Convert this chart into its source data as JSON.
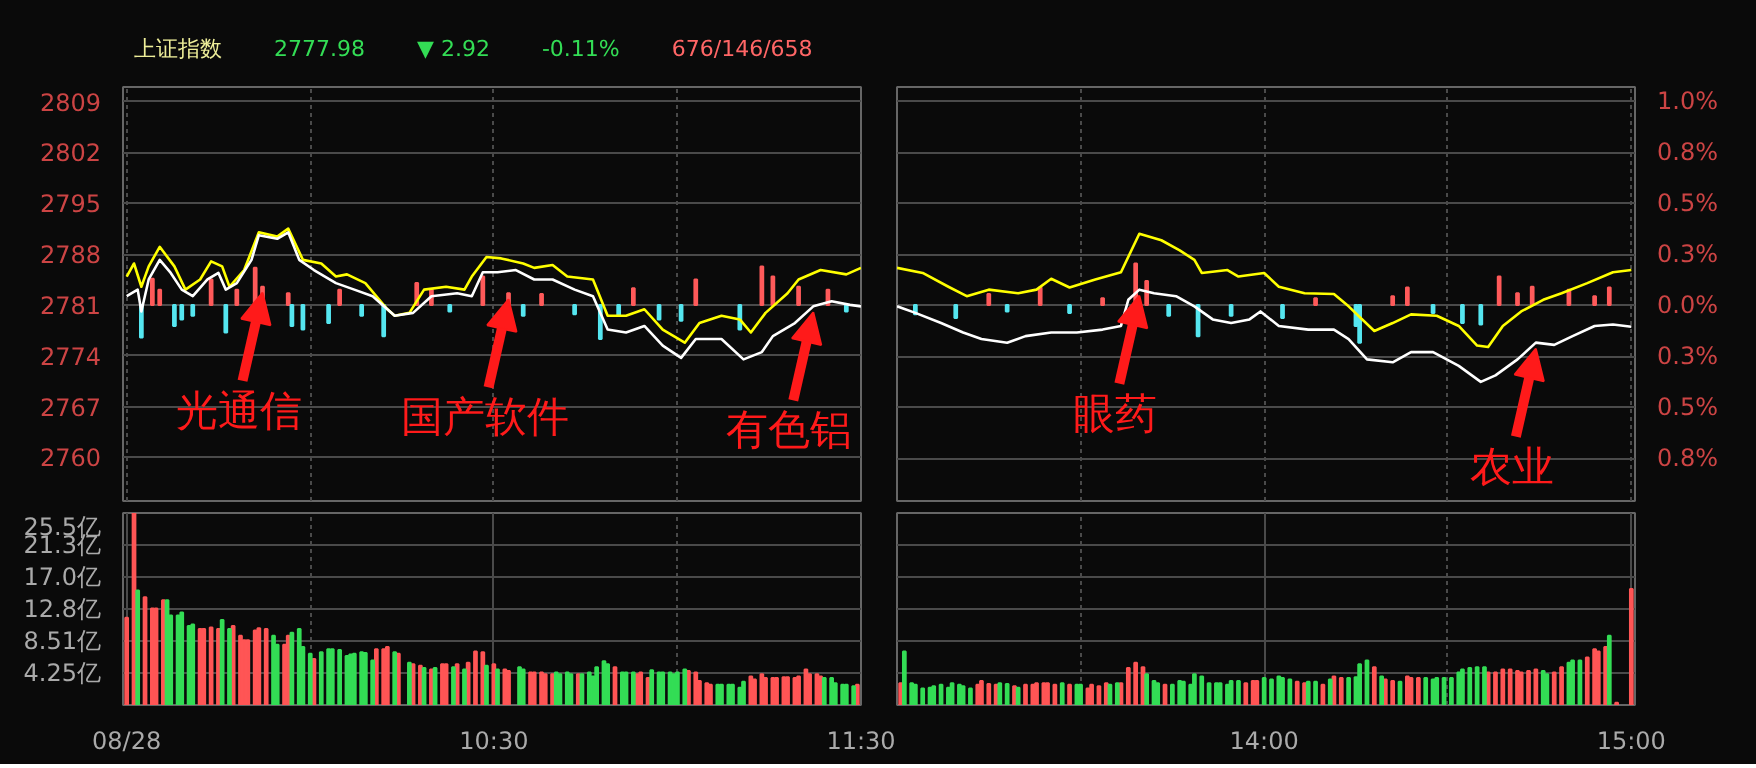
{
  "chart_data": [
    {
      "type": "line",
      "title": "上证指数",
      "annotations": [
        "2777.98",
        "▼ 2.92",
        "-0.11%",
        "676/146/658",
        {
          "text": "光通信",
          "x": 9.87,
          "y": 2783.5
        },
        {
          "text": "国产软件",
          "x": 10.54,
          "y": 2782.6
        },
        {
          "text": "有色铝",
          "x": 11.37,
          "y": 2780.8
        }
      ],
      "xlim": [
        9.49,
        11.5
      ],
      "xticks": [
        {
          "value": 9.5,
          "label": null
        },
        {
          "value": 10,
          "label": null
        },
        {
          "value": 10.5,
          "label": null
        },
        {
          "value": 11,
          "label": null
        },
        {
          "value": 11.5,
          "label": null
        }
      ],
      "ylim": [
        2754,
        2811
      ],
      "yticks": [
        2760,
        2767,
        2774,
        2781,
        2788,
        2795,
        2802,
        2809
      ],
      "grid": true,
      "tick_labels": "y",
      "series": [
        {
          "type": "bar",
          "color": "#ff5a5a",
          "x": [
            9.57,
            9.59,
            9.73,
            9.8,
            9.85,
            9.87,
            9.94,
            10.08,
            10.29,
            10.33,
            10.47,
            10.54,
            10.63,
            10.88,
            11.05,
            11.23,
            11.26,
            11.33,
            11.41
          ],
          "base": [
            2781,
            2781,
            2781,
            2781,
            2781,
            2781,
            2781,
            2781,
            2781,
            2781,
            2781,
            2781,
            2781,
            2781,
            2781,
            2781,
            2781,
            2781,
            2781
          ],
          "values": [
            3.6,
            2.1,
            3.5,
            2.1,
            5.1,
            2.5,
            1.6,
            2.1,
            3.0,
            2.1,
            3.9,
            1.6,
            1.5,
            2.3,
            3.5,
            5.3,
            3.9,
            2.5,
            2.1
          ]
        },
        {
          "type": "bar",
          "color": "#55e6f0",
          "x": [
            9.54,
            9.63,
            9.65,
            9.68,
            9.77,
            9.95,
            9.98,
            10.05,
            10.14,
            10.2,
            10.38,
            10.58,
            10.72,
            10.79,
            10.84,
            10.95,
            11.01,
            11.17,
            11.46
          ],
          "base": [
            2781,
            2781,
            2781,
            2781,
            2781,
            2781,
            2781,
            2781,
            2781,
            2781,
            2781,
            2781,
            2781,
            2781,
            2781,
            2781,
            2781,
            2781,
            2781
          ],
          "values": [
            -4.5,
            -2.9,
            -2.0,
            -1.5,
            -3.8,
            -2.9,
            -3.4,
            -2.5,
            -1.5,
            -4.3,
            -0.9,
            -1.5,
            -1.3,
            -4.7,
            -1.5,
            -2.0,
            -2.2,
            -3.4,
            -0.9
          ]
        },
        {
          "color": "#ffff00",
          "x": [
            9.5,
            9.52,
            9.54,
            9.56,
            9.59,
            9.63,
            9.66,
            9.7,
            9.73,
            9.76,
            9.78,
            9.82,
            9.86,
            9.91,
            9.94,
            9.98,
            10.03,
            10.07,
            10.1,
            10.15,
            10.21,
            10.23,
            10.27,
            10.31,
            10.37,
            10.42,
            10.44,
            10.48,
            10.52,
            10.58,
            10.61,
            10.66,
            10.7,
            10.77,
            10.81,
            10.86,
            10.91,
            10.96,
            11.02,
            11.06,
            11.12,
            11.17,
            11.2,
            11.24,
            11.3,
            11.33,
            11.39,
            11.46,
            11.5
          ],
          "values": [
            2784.9,
            2786.7,
            2783.5,
            2786.3,
            2789.0,
            2786.3,
            2783.1,
            2784.5,
            2787.0,
            2786.3,
            2783.5,
            2785.8,
            2791.0,
            2790.4,
            2791.5,
            2787.2,
            2786.7,
            2784.9,
            2785.2,
            2784.0,
            2780.4,
            2779.5,
            2779.9,
            2783.1,
            2783.5,
            2783.1,
            2784.9,
            2787.6,
            2787.4,
            2786.7,
            2786.1,
            2786.5,
            2784.9,
            2784.5,
            2779.5,
            2779.5,
            2780.4,
            2777.6,
            2775.8,
            2778.5,
            2779.5,
            2779.0,
            2777.2,
            2779.9,
            2782.6,
            2784.5,
            2785.8,
            2785.2,
            2786.1
          ]
        },
        {
          "color": "#ffffff",
          "x": [
            9.5,
            9.53,
            9.54,
            9.56,
            9.59,
            9.62,
            9.65,
            9.68,
            9.72,
            9.75,
            9.77,
            9.8,
            9.84,
            9.86,
            9.91,
            9.94,
            9.97,
            10.01,
            10.07,
            10.12,
            10.17,
            10.23,
            10.28,
            10.33,
            10.4,
            10.44,
            10.47,
            10.51,
            10.56,
            10.61,
            10.66,
            10.72,
            10.77,
            10.81,
            10.86,
            10.91,
            10.96,
            11.01,
            11.05,
            11.12,
            11.18,
            11.23,
            11.26,
            11.32,
            11.37,
            11.42,
            11.47,
            11.5
          ],
          "values": [
            2782.2,
            2783.1,
            2780.1,
            2784.5,
            2787.2,
            2785.4,
            2783.1,
            2782.2,
            2784.5,
            2785.4,
            2783.1,
            2784.0,
            2787.2,
            2790.6,
            2790.1,
            2791.0,
            2787.2,
            2785.8,
            2784.0,
            2783.1,
            2782.2,
            2779.5,
            2779.9,
            2782.2,
            2782.6,
            2782.2,
            2785.5,
            2785.5,
            2785.8,
            2784.5,
            2784.5,
            2783.1,
            2782.2,
            2777.6,
            2777.2,
            2778.1,
            2775.4,
            2773.7,
            2776.3,
            2776.3,
            2773.5,
            2774.5,
            2776.7,
            2778.5,
            2780.8,
            2781.5,
            2781.0,
            2780.8
          ]
        }
      ]
    },
    {
      "type": "line",
      "annotations": [
        {
          "text": "眼药",
          "x": 13.66,
          "y": 2783.1
        },
        {
          "text": "农业",
          "x": 14.74,
          "y": 2775.8
        }
      ],
      "xlim": [
        13,
        15.01
      ],
      "xticks": [
        {
          "value": 13.5,
          "label": null
        },
        {
          "value": 14,
          "label": null
        },
        {
          "value": 14.5,
          "label": null
        },
        {
          "value": 15,
          "label": null
        }
      ],
      "ylim": [
        2754,
        2811
      ],
      "y2lim": [
        -0.96,
        1.07
      ],
      "y2ticks": [
        {
          "value": -0.75,
          "label": "0.8%"
        },
        {
          "value": -0.5,
          "label": "0.5%"
        },
        {
          "value": -0.25,
          "label": "0.3%"
        },
        {
          "value": 0,
          "label": "0.0%"
        },
        {
          "value": 0.25,
          "label": "0.3%"
        },
        {
          "value": 0.5,
          "label": "0.5%"
        },
        {
          "value": 0.75,
          "label": "0.8%"
        },
        {
          "value": 1.0,
          "label": "1.0%"
        }
      ],
      "grid": true,
      "tick_labels": "y",
      "series": [
        {
          "type": "bar",
          "color": "#ff5a5a",
          "x": [
            13.25,
            13.39,
            13.56,
            13.65,
            13.68,
            14.14,
            14.35,
            14.39,
            14.64,
            14.69,
            14.73,
            14.83,
            14.9,
            14.94
          ],
          "base": [
            2781,
            2781,
            2781,
            2781,
            2781,
            2781,
            2781,
            2781,
            2781,
            2781,
            2781,
            2781,
            2781,
            2781
          ],
          "values": [
            1.5,
            2.4,
            0.9,
            5.7,
            3.3,
            0.9,
            1.2,
            2.4,
            3.9,
            1.6,
            2.5,
            2.1,
            1.2,
            2.4
          ]
        },
        {
          "type": "bar",
          "color": "#55e6f0",
          "x": [
            13.05,
            13.16,
            13.3,
            13.47,
            13.74,
            13.82,
            13.91,
            14.05,
            14.25,
            14.26,
            14.46,
            14.54,
            14.59
          ],
          "base": [
            2781,
            2781,
            2781,
            2781,
            2781,
            2781,
            2781,
            2781,
            2781,
            2781,
            2781,
            2781,
            2781
          ],
          "values": [
            -1.3,
            -1.8,
            -0.9,
            -1.1,
            -1.5,
            -4.3,
            -1.5,
            -1.8,
            -2.9,
            -5.2,
            -1.1,
            -2.5,
            -2.7
          ]
        },
        {
          "color": "#ffff00",
          "x": [
            13.0,
            13.07,
            13.14,
            13.19,
            13.25,
            13.33,
            13.38,
            13.42,
            13.47,
            13.54,
            13.61,
            13.66,
            13.72,
            13.77,
            13.81,
            13.83,
            13.9,
            13.93,
            14.0,
            14.04,
            14.11,
            14.19,
            14.23,
            14.3,
            14.35,
            14.4,
            14.47,
            14.53,
            14.58,
            14.61,
            14.65,
            14.7,
            14.76,
            14.81,
            14.88,
            14.95,
            15.0
          ],
          "values": [
            2786.1,
            2785.4,
            2783.5,
            2782.2,
            2783.1,
            2782.6,
            2783.1,
            2784.6,
            2783.4,
            2784.5,
            2785.5,
            2790.8,
            2789.9,
            2788.5,
            2787.2,
            2785.4,
            2785.8,
            2784.9,
            2785.4,
            2783.5,
            2782.6,
            2782.5,
            2780.8,
            2777.4,
            2778.5,
            2779.7,
            2779.5,
            2778.1,
            2775.4,
            2775.2,
            2778.1,
            2780.1,
            2781.7,
            2782.6,
            2784.0,
            2785.5,
            2785.8
          ]
        },
        {
          "color": "#ffffff",
          "x": [
            13.0,
            13.05,
            13.12,
            13.18,
            13.23,
            13.3,
            13.35,
            13.42,
            13.49,
            13.56,
            13.61,
            13.63,
            13.66,
            13.7,
            13.76,
            13.81,
            13.86,
            13.91,
            13.96,
            13.99,
            14.04,
            14.12,
            14.19,
            14.23,
            14.28,
            14.35,
            14.4,
            14.46,
            14.53,
            14.59,
            14.63,
            14.69,
            14.74,
            14.79,
            14.84,
            14.9,
            14.95,
            15.0
          ],
          "values": [
            2780.8,
            2779.9,
            2778.5,
            2777.2,
            2776.3,
            2775.8,
            2776.7,
            2777.2,
            2777.2,
            2777.6,
            2778.1,
            2781.7,
            2783.1,
            2782.6,
            2782.2,
            2780.8,
            2779.0,
            2778.5,
            2779.0,
            2780.1,
            2778.1,
            2777.6,
            2777.6,
            2776.3,
            2773.5,
            2773.1,
            2774.5,
            2774.5,
            2772.6,
            2770.4,
            2771.3,
            2773.5,
            2775.8,
            2775.5,
            2776.7,
            2778.1,
            2778.3,
            2778.0
          ]
        }
      ]
    },
    {
      "type": "bar",
      "xlim": [
        9.49,
        11.5
      ],
      "xticks": [
        {
          "value": 9.5,
          "label": "08/28"
        },
        {
          "value": 10,
          "label": null
        },
        {
          "value": 10.5,
          "label": "10:30"
        },
        {
          "value": 11,
          "label": null
        },
        {
          "value": 11.5,
          "label": "11:30"
        }
      ],
      "ylim": [
        0,
        25.5
      ],
      "yticks": [
        {
          "value": 4.25,
          "label": "4.25亿"
        },
        {
          "value": 8.51,
          "label": "8.51亿"
        },
        {
          "value": 12.8,
          "label": "12.8亿"
        },
        {
          "value": 17.0,
          "label": "17.0亿"
        },
        {
          "value": 21.3,
          "label": "21.3亿"
        },
        {
          "value": 25.5,
          "label": "25.5亿"
        }
      ],
      "grid": true,
      "series": [
        {
          "color": "#ff5555",
          "x": [
            9.5,
            9.52,
            9.55,
            9.57,
            9.58,
            9.6,
            9.7,
            9.71,
            9.73,
            9.75,
            9.79,
            9.81,
            9.82,
            9.83,
            9.85,
            9.86,
            9.88,
            9.93,
            9.94,
            10.01,
            10.18,
            10.2,
            10.21,
            10.24,
            10.28,
            10.3,
            10.33,
            10.36,
            10.37,
            10.4,
            10.43,
            10.45,
            10.47,
            10.5,
            10.53,
            10.54,
            10.6,
            10.61,
            10.63,
            10.64,
            10.66,
            10.73,
            10.83,
            10.89,
            10.9,
            10.92,
            11.03,
            11.05,
            11.06,
            11.08,
            11.09,
            11.2,
            11.21,
            11.23,
            11.24,
            11.26,
            11.27,
            11.29,
            11.3,
            11.32,
            11.33,
            11.35,
            11.36,
            11.38,
            11.39,
            11.49
          ],
          "values": [
            11.6,
            25.5,
            14.3,
            12.8,
            12.8,
            13.9,
            10.1,
            10.1,
            10.3,
            10.1,
            10.5,
            9.2,
            8.6,
            8.6,
            9.9,
            10.2,
            10.1,
            8.0,
            9.2,
            6.1,
            7.4,
            7.4,
            7.7,
            6.8,
            5.4,
            5.2,
            4.7,
            5.4,
            5.4,
            5.4,
            5.6,
            7.1,
            7.0,
            5.4,
            4.7,
            4.5,
            4.3,
            4.3,
            4.3,
            4.1,
            4.1,
            4.1,
            5.0,
            4.1,
            4.3,
            3.6,
            4.5,
            4.3,
            3.2,
            2.9,
            2.7,
            3.8,
            3.4,
            4.1,
            3.6,
            3.6,
            3.6,
            3.7,
            3.7,
            3.6,
            3.8,
            4.7,
            4.1,
            4.1,
            3.8,
            2.7
          ]
        },
        {
          "color": "#33dd55",
          "x": [
            9.53,
            9.61,
            9.62,
            9.64,
            9.65,
            9.67,
            9.68,
            9.76,
            9.78,
            9.9,
            9.91,
            9.95,
            9.97,
            9.98,
            10.0,
            10.03,
            10.05,
            10.06,
            10.08,
            10.1,
            10.11,
            10.12,
            10.14,
            10.15,
            10.17,
            10.23,
            10.27,
            10.31,
            10.34,
            10.39,
            10.42,
            10.48,
            10.51,
            10.57,
            10.58,
            10.67,
            10.68,
            10.7,
            10.71,
            10.74,
            10.76,
            10.77,
            10.78,
            10.8,
            10.81,
            10.85,
            10.86,
            10.88,
            10.93,
            10.95,
            10.96,
            10.98,
            10.99,
            11.0,
            11.02,
            11.11,
            11.12,
            11.14,
            11.15,
            11.17,
            11.18,
            11.4,
            11.42,
            11.43,
            11.45,
            11.46,
            11.48
          ],
          "values": [
            15.2,
            13.9,
            11.9,
            11.9,
            12.3,
            10.5,
            10.7,
            11.3,
            10.1,
            9.2,
            8.0,
            9.6,
            10.1,
            7.7,
            6.8,
            7.0,
            7.4,
            7.4,
            7.3,
            6.5,
            6.7,
            6.8,
            7.0,
            6.9,
            5.9,
            7.0,
            5.6,
            4.9,
            4.9,
            5.0,
            4.7,
            5.2,
            4.7,
            5.0,
            4.7,
            4.3,
            4.1,
            4.3,
            4.1,
            4.1,
            4.3,
            3.8,
            5.0,
            5.8,
            5.4,
            4.3,
            4.3,
            4.3,
            4.6,
            4.3,
            4.3,
            4.3,
            4.1,
            4.3,
            4.7,
            2.7,
            2.7,
            2.7,
            2.7,
            2.3,
            3.1,
            3.6,
            3.6,
            2.9,
            2.7,
            2.7,
            2.5
          ]
        }
      ]
    },
    {
      "type": "bar",
      "xlim": [
        13,
        15.01
      ],
      "xticks": [
        {
          "value": 13.5,
          "label": null
        },
        {
          "value": 14,
          "label": "14:00"
        },
        {
          "value": 14.5,
          "label": null
        },
        {
          "value": 15,
          "label": "15:00"
        }
      ],
      "ylim": [
        0,
        25.5
      ],
      "yticks": [
        4.25,
        8.51,
        12.8,
        17.0,
        21.3,
        25.5
      ],
      "grid": true,
      "tick_labels": "x",
      "series": [
        {
          "color": "#ff5555",
          "x": [
            13.01,
            13.22,
            13.23,
            13.25,
            13.27,
            13.32,
            13.35,
            13.37,
            13.38,
            13.4,
            13.41,
            13.43,
            13.47,
            13.52,
            13.53,
            13.55,
            13.57,
            13.61,
            13.63,
            13.65,
            13.67,
            13.73,
            13.95,
            13.97,
            13.98,
            14.09,
            14.11,
            14.16,
            14.19,
            14.21,
            14.3,
            14.33,
            14.35,
            14.39,
            14.4,
            14.42,
            14.61,
            14.63,
            14.65,
            14.67,
            14.69,
            14.7,
            14.72,
            14.74,
            14.79,
            14.81,
            14.88,
            14.9,
            14.91,
            14.93,
            14.96,
            15.0
          ],
          "values": [
            2.9,
            2.7,
            3.2,
            2.8,
            2.7,
            2.5,
            2.7,
            2.7,
            2.9,
            2.9,
            2.9,
            2.7,
            2.7,
            2.2,
            2.7,
            2.5,
            2.9,
            2.9,
            4.9,
            5.6,
            5.0,
            2.7,
            2.9,
            3.2,
            3.2,
            3.1,
            2.9,
            2.7,
            3.8,
            3.6,
            5.0,
            3.4,
            3.2,
            3.8,
            3.6,
            3.6,
            4.3,
            4.3,
            4.7,
            4.7,
            4.5,
            4.3,
            4.5,
            4.7,
            4.3,
            5.0,
            6.3,
            7.4,
            7.1,
            7.7,
            0.3,
            15.4
          ]
        },
        {
          "color": "#33dd55",
          "x": [
            13.02,
            13.04,
            13.05,
            13.07,
            13.09,
            13.1,
            13.12,
            13.14,
            13.15,
            13.17,
            13.18,
            13.2,
            13.28,
            13.3,
            13.33,
            13.45,
            13.49,
            13.5,
            13.58,
            13.6,
            13.68,
            13.7,
            13.71,
            13.75,
            13.77,
            13.78,
            13.8,
            13.81,
            13.83,
            13.85,
            13.87,
            13.88,
            13.9,
            13.91,
            13.93,
            14.0,
            14.02,
            14.04,
            14.05,
            14.07,
            14.12,
            14.14,
            14.18,
            14.23,
            14.25,
            14.26,
            14.28,
            14.32,
            14.37,
            14.44,
            14.46,
            14.47,
            14.49,
            14.51,
            14.53,
            14.54,
            14.56,
            14.58,
            14.6,
            14.76,
            14.77,
            14.83,
            14.84,
            14.86,
            14.94
          ],
          "values": [
            7.1,
            2.9,
            2.7,
            2.2,
            2.3,
            2.5,
            2.7,
            2.3,
            2.9,
            2.7,
            2.5,
            2.2,
            2.9,
            2.8,
            2.3,
            2.9,
            2.7,
            2.7,
            2.7,
            2.9,
            4.1,
            3.2,
            2.9,
            2.7,
            3.2,
            3.1,
            2.7,
            4.1,
            3.8,
            2.9,
            2.9,
            2.9,
            2.7,
            3.2,
            3.2,
            3.6,
            3.4,
            3.8,
            3.6,
            3.4,
            3.1,
            3.1,
            3.4,
            3.6,
            3.7,
            5.4,
            5.9,
            3.8,
            3.1,
            3.6,
            3.4,
            3.6,
            3.6,
            3.6,
            4.3,
            4.7,
            4.9,
            5.0,
            5.0,
            4.5,
            4.1,
            5.6,
            5.9,
            5.9,
            9.2
          ]
        }
      ]
    }
  ]
}
